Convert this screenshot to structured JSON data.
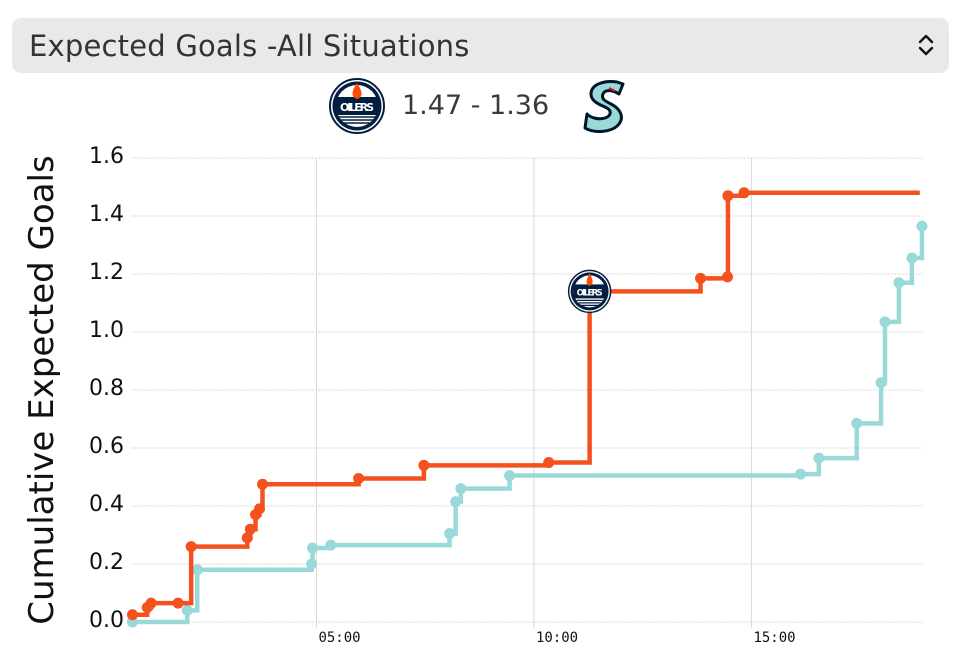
{
  "selector": {
    "label": "Expected Goals -All Situations",
    "icon": "updown-chevron-icon"
  },
  "scoreline": {
    "home_team": "Edmonton Oilers",
    "home_logo": "oilers-logo-icon",
    "away_team": "Seattle Kraken",
    "away_logo": "kraken-logo-icon",
    "score_text": "1.47 - 1.36",
    "home_xg": 1.47,
    "away_xg": 1.36
  },
  "colors": {
    "home": "#f4511e",
    "away": "#99d9d9",
    "grid": "#d9d9d9",
    "selector_bg": "#e9e9eb",
    "oilers_navy": "#041e42",
    "oilers_orange": "#fc4c02"
  },
  "chart_data": {
    "type": "line",
    "step": true,
    "title": "Expected Goals -All Situations",
    "xlabel": "",
    "ylabel": "Cumulative Expected Goals",
    "ylim": [
      0,
      1.6
    ],
    "yticks": [
      "0.0",
      "0.2",
      "0.4",
      "0.6",
      "0.8",
      "1.0",
      "1.2",
      "1.4",
      "1.6"
    ],
    "xticks": [
      "05:00",
      "10:00",
      "15:00"
    ],
    "xlim_minutes": [
      0.75,
      18.9
    ],
    "grid": true,
    "legend": "none (team logos above chart)",
    "annotations": [
      {
        "type": "goal-marker",
        "team": "Edmonton Oilers",
        "x_minutes": 11.28,
        "y": 1.14,
        "icon": "oilers-logo-icon"
      }
    ],
    "series": [
      {
        "name": "Edmonton Oilers",
        "color": "#f4511e",
        "final": 1.47,
        "points": [
          [
            0.77,
            0.025
          ],
          [
            1.11,
            0.05
          ],
          [
            1.2,
            0.065
          ],
          [
            1.82,
            0.065
          ],
          [
            2.12,
            0.26
          ],
          [
            3.41,
            0.29
          ],
          [
            3.48,
            0.32
          ],
          [
            3.6,
            0.37
          ],
          [
            3.69,
            0.39
          ],
          [
            3.76,
            0.475
          ],
          [
            5.97,
            0.495
          ],
          [
            7.47,
            0.54
          ],
          [
            10.34,
            0.55
          ],
          [
            11.28,
            1.14
          ],
          [
            13.83,
            1.185
          ],
          [
            14.45,
            1.19
          ],
          [
            14.46,
            1.47
          ],
          [
            14.83,
            1.48
          ],
          [
            18.87,
            1.48
          ]
        ]
      },
      {
        "name": "Seattle Kraken",
        "color": "#99d9d9",
        "final": 1.36,
        "points": [
          [
            0.77,
            0.0
          ],
          [
            2.03,
            0.04
          ],
          [
            2.26,
            0.18
          ],
          [
            4.89,
            0.2
          ],
          [
            4.91,
            0.255
          ],
          [
            5.33,
            0.265
          ],
          [
            8.06,
            0.305
          ],
          [
            8.2,
            0.415
          ],
          [
            8.32,
            0.46
          ],
          [
            9.44,
            0.505
          ],
          [
            16.13,
            0.51
          ],
          [
            16.55,
            0.565
          ],
          [
            17.42,
            0.685
          ],
          [
            17.98,
            0.825
          ],
          [
            18.07,
            1.035
          ],
          [
            18.39,
            1.17
          ],
          [
            18.69,
            1.255
          ],
          [
            18.92,
            1.365
          ]
        ]
      }
    ]
  }
}
